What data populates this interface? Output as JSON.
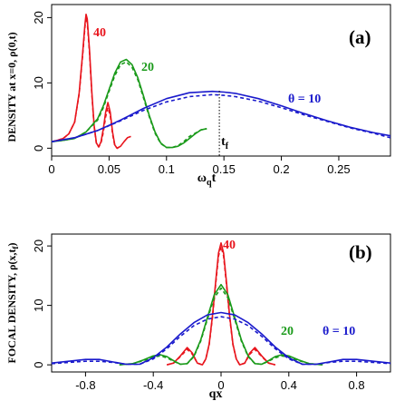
{
  "colors": {
    "theta_40": "#e8141c",
    "theta_20": "#1a9a1a",
    "theta_10": "#1a1acc",
    "marker": "#000000"
  },
  "chart_data": [
    {
      "type": "line",
      "panel_label": "(a)",
      "xlabel": "ω_q t",
      "xlabel_main": "ω",
      "xlabel_sub": "q",
      "xlabel_tail": "t",
      "ylabel": "DENSITY  at  x=0,  ρ(0,t)",
      "xlim": [
        0,
        0.295
      ],
      "ylim": [
        -1.2,
        22
      ],
      "xticks": [
        0,
        0.05,
        0.1,
        0.15,
        0.2,
        0.25
      ],
      "xtick_labels": [
        "0",
        "0.05",
        "0.1",
        "0.15",
        "0.2",
        "0.25"
      ],
      "yticks": [
        0,
        10,
        20
      ],
      "ytick_labels": [
        "0",
        "10",
        "20"
      ],
      "annotations": {
        "label_40": "40",
        "label_20": "20",
        "label_10": "θ = 10",
        "tf": "t",
        "tf_sub": "f",
        "tf_x": 0.146
      },
      "series": [
        {
          "color_key": "theta_40",
          "style": "solid",
          "x": [
            0.0,
            0.005,
            0.01,
            0.015,
            0.02,
            0.024,
            0.027,
            0.029,
            0.03,
            0.031,
            0.033,
            0.035,
            0.037,
            0.039,
            0.041,
            0.043,
            0.045,
            0.047,
            0.049,
            0.051,
            0.053,
            0.055,
            0.057,
            0.06,
            0.063,
            0.066,
            0.069
          ],
          "y": [
            1.0,
            1.2,
            1.5,
            2.2,
            4.0,
            8.5,
            14.5,
            19.0,
            20.5,
            19.8,
            15.0,
            8.5,
            3.5,
            0.8,
            0.2,
            1.0,
            3.0,
            5.5,
            7.0,
            5.5,
            2.5,
            0.5,
            0.0,
            0.3,
            1.0,
            1.6,
            1.8
          ]
        },
        {
          "color_key": "theta_40",
          "style": "dashed",
          "x": [
            0.0,
            0.005,
            0.01,
            0.015,
            0.02,
            0.024,
            0.027,
            0.029,
            0.03,
            0.031,
            0.033,
            0.035,
            0.037,
            0.039,
            0.041,
            0.043,
            0.045,
            0.047,
            0.049,
            0.051,
            0.053,
            0.055,
            0.057,
            0.059
          ],
          "y": [
            1.0,
            1.2,
            1.5,
            2.2,
            4.0,
            8.3,
            14.2,
            18.6,
            20.0,
            19.3,
            14.6,
            8.2,
            3.3,
            0.7,
            0.2,
            0.8,
            2.5,
            4.8,
            6.2,
            5.0,
            2.2,
            0.4,
            0.0,
            0.2
          ]
        },
        {
          "color_key": "theta_20",
          "style": "solid",
          "x": [
            0.0,
            0.01,
            0.02,
            0.03,
            0.04,
            0.045,
            0.05,
            0.055,
            0.06,
            0.065,
            0.07,
            0.075,
            0.08,
            0.085,
            0.09,
            0.095,
            0.1,
            0.105,
            0.11,
            0.115,
            0.12,
            0.125,
            0.13,
            0.135
          ],
          "y": [
            1.0,
            1.2,
            1.5,
            2.5,
            4.5,
            6.5,
            9.0,
            11.5,
            13.2,
            13.6,
            12.8,
            10.8,
            8.0,
            5.0,
            2.5,
            0.8,
            0.1,
            0.1,
            0.3,
            0.8,
            1.5,
            2.2,
            2.8,
            3.0
          ]
        },
        {
          "color_key": "theta_20",
          "style": "dashed",
          "x": [
            0.0,
            0.01,
            0.02,
            0.03,
            0.04,
            0.045,
            0.05,
            0.055,
            0.06,
            0.065,
            0.07,
            0.075,
            0.08,
            0.085,
            0.09,
            0.095,
            0.1,
            0.105,
            0.11,
            0.115,
            0.12,
            0.125,
            0.13,
            0.135
          ],
          "y": [
            1.0,
            1.2,
            1.5,
            2.5,
            4.3,
            6.2,
            8.7,
            11.1,
            12.8,
            13.2,
            12.4,
            10.5,
            7.7,
            4.8,
            2.3,
            0.7,
            0.1,
            0.1,
            0.4,
            1.0,
            1.8,
            2.3,
            2.8,
            3.0
          ]
        },
        {
          "color_key": "theta_10",
          "style": "solid",
          "x": [
            0.0,
            0.02,
            0.04,
            0.06,
            0.08,
            0.1,
            0.12,
            0.14,
            0.15,
            0.16,
            0.18,
            0.2,
            0.22,
            0.24,
            0.26,
            0.28,
            0.295
          ],
          "y": [
            1.0,
            1.6,
            2.7,
            4.3,
            6.1,
            7.6,
            8.5,
            8.7,
            8.6,
            8.4,
            7.6,
            6.5,
            5.3,
            4.2,
            3.2,
            2.4,
            1.9
          ]
        },
        {
          "color_key": "theta_10",
          "style": "dashed",
          "x": [
            0.0,
            0.02,
            0.04,
            0.06,
            0.08,
            0.1,
            0.12,
            0.14,
            0.15,
            0.16,
            0.18,
            0.2,
            0.22,
            0.24,
            0.26,
            0.28,
            0.295
          ],
          "y": [
            1.0,
            1.6,
            2.7,
            4.2,
            5.8,
            7.1,
            7.9,
            8.2,
            8.1,
            7.9,
            7.2,
            6.2,
            5.1,
            4.1,
            3.1,
            2.3,
            1.6
          ]
        }
      ]
    },
    {
      "type": "line",
      "panel_label": "(b)",
      "xlabel": "qx",
      "ylabel": "FOCAL DENSITY, ρ(x,t_f)",
      "ylabel_main": "FOCAL DENSITY, ρ(x,t",
      "ylabel_sub": "f",
      "ylabel_tail": ")",
      "xlim": [
        -1.0,
        1.0
      ],
      "ylim": [
        -1.2,
        22
      ],
      "xticks": [
        -0.8,
        -0.4,
        0,
        0.4,
        0.8
      ],
      "xtick_labels": [
        "-0.8",
        "-0.4",
        "0",
        "0.4",
        "0.8"
      ],
      "yticks": [
        0,
        10,
        20
      ],
      "ytick_labels": [
        "0",
        "10",
        "20"
      ],
      "annotations": {
        "label_40": "40",
        "label_20": "20",
        "label_10": "θ = 10"
      },
      "series": [
        {
          "color_key": "theta_40",
          "style": "solid",
          "x": [
            -0.32,
            -0.28,
            -0.24,
            -0.2,
            -0.17,
            -0.14,
            -0.11,
            -0.09,
            -0.07,
            -0.05,
            -0.03,
            -0.015,
            0.0,
            0.015,
            0.03,
            0.05,
            0.07,
            0.09,
            0.11,
            0.14,
            0.17,
            0.2,
            0.24,
            0.28,
            0.32
          ],
          "y": [
            0.0,
            0.3,
            1.5,
            2.9,
            2.0,
            0.3,
            0.0,
            1.0,
            3.5,
            8.5,
            14.5,
            18.8,
            20.5,
            18.8,
            14.5,
            8.5,
            3.5,
            1.0,
            0.0,
            0.3,
            2.0,
            2.9,
            1.5,
            0.3,
            0.0
          ]
        },
        {
          "color_key": "theta_40",
          "style": "dashed",
          "x": [
            -0.32,
            -0.28,
            -0.24,
            -0.2,
            -0.17,
            -0.14,
            -0.11,
            -0.09,
            -0.07,
            -0.05,
            -0.03,
            -0.015,
            0.0,
            0.015,
            0.03,
            0.05,
            0.07,
            0.09,
            0.11,
            0.14,
            0.17,
            0.2,
            0.24,
            0.28,
            0.32
          ],
          "y": [
            0.0,
            0.3,
            1.4,
            2.6,
            1.8,
            0.3,
            0.0,
            1.0,
            3.4,
            8.2,
            14.1,
            18.3,
            19.9,
            18.3,
            14.1,
            8.2,
            3.4,
            1.0,
            0.0,
            0.3,
            1.8,
            2.6,
            1.4,
            0.3,
            0.0
          ]
        },
        {
          "color_key": "theta_20",
          "style": "solid",
          "x": [
            -0.6,
            -0.52,
            -0.46,
            -0.4,
            -0.36,
            -0.32,
            -0.28,
            -0.24,
            -0.2,
            -0.16,
            -0.12,
            -0.08,
            -0.04,
            0.0,
            0.04,
            0.08,
            0.12,
            0.16,
            0.2,
            0.24,
            0.28,
            0.32,
            0.36,
            0.4,
            0.46,
            0.52,
            0.6
          ],
          "y": [
            0.0,
            0.2,
            0.8,
            1.5,
            1.7,
            1.4,
            0.7,
            0.1,
            0.2,
            1.5,
            4.2,
            8.0,
            11.8,
            13.5,
            11.8,
            8.0,
            4.2,
            1.5,
            0.2,
            0.1,
            0.7,
            1.4,
            1.7,
            1.5,
            0.8,
            0.2,
            0.0
          ]
        },
        {
          "color_key": "theta_20",
          "style": "dashed",
          "x": [
            -0.6,
            -0.52,
            -0.46,
            -0.4,
            -0.36,
            -0.32,
            -0.28,
            -0.24,
            -0.2,
            -0.16,
            -0.12,
            -0.08,
            -0.04,
            0.0,
            0.04,
            0.08,
            0.12,
            0.16,
            0.2,
            0.24,
            0.28,
            0.32,
            0.36,
            0.4,
            0.46,
            0.52,
            0.6
          ],
          "y": [
            0.0,
            0.2,
            0.7,
            1.3,
            1.5,
            1.2,
            0.6,
            0.1,
            0.2,
            1.4,
            4.0,
            7.7,
            11.3,
            12.9,
            11.3,
            7.7,
            4.0,
            1.4,
            0.2,
            0.1,
            0.6,
            1.2,
            1.5,
            1.3,
            0.7,
            0.2,
            0.0
          ]
        },
        {
          "color_key": "theta_10",
          "style": "solid",
          "x": [
            -1.0,
            -0.9,
            -0.8,
            -0.72,
            -0.64,
            -0.56,
            -0.48,
            -0.4,
            -0.32,
            -0.24,
            -0.16,
            -0.08,
            0.0,
            0.08,
            0.16,
            0.24,
            0.32,
            0.4,
            0.48,
            0.56,
            0.64,
            0.72,
            0.8,
            0.9,
            1.0
          ],
          "y": [
            0.3,
            0.6,
            0.9,
            0.9,
            0.5,
            0.1,
            0.1,
            1.2,
            3.0,
            5.2,
            7.1,
            8.4,
            8.8,
            8.4,
            7.1,
            5.2,
            3.0,
            1.2,
            0.1,
            0.1,
            0.5,
            0.9,
            0.9,
            0.6,
            0.3
          ]
        },
        {
          "color_key": "theta_10",
          "style": "dashed",
          "x": [
            -1.0,
            -0.9,
            -0.8,
            -0.72,
            -0.64,
            -0.56,
            -0.48,
            -0.4,
            -0.32,
            -0.24,
            -0.16,
            -0.08,
            0.0,
            0.08,
            0.16,
            0.24,
            0.32,
            0.4,
            0.48,
            0.56,
            0.64,
            0.72,
            0.8,
            0.9,
            1.0
          ],
          "y": [
            0.2,
            0.4,
            0.6,
            0.6,
            0.4,
            0.1,
            0.1,
            1.0,
            2.7,
            4.8,
            6.6,
            7.7,
            8.1,
            7.7,
            6.6,
            4.8,
            2.7,
            1.0,
            0.1,
            0.1,
            0.4,
            0.6,
            0.6,
            0.4,
            0.2
          ]
        }
      ]
    }
  ]
}
